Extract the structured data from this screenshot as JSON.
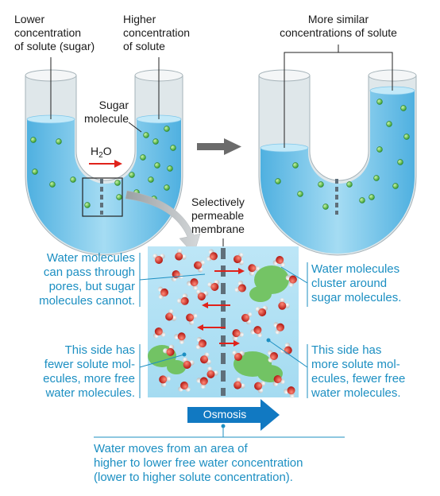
{
  "labels": {
    "lower_conc": "Lower\nconcentration\nof solute (sugar)",
    "higher_conc": "Higher\nconcentration\nof solute",
    "more_similar": "More similar\nconcentrations of solute",
    "sugar_molecule": "Sugar\nmolecule",
    "h2o_main": "H",
    "h2o_sub": "2",
    "h2o_end": "O",
    "selective": "Selectively\npermeable\nmembrane",
    "water_pores": "Water molecules\ncan pass through\npores, but sugar\nmolecules cannot.",
    "water_cluster": "Water molecules\ncluster around\nsugar molecules.",
    "fewer_solute": "This side has\nfewer solute mol-\necules, more free\nwater molecules.",
    "more_solute": "This side has\nmore solute mol-\necules, fewer free\nwater molecules.",
    "osmosis": "Osmosis",
    "conclusion": "Water moves from an area of\nhigher to lower free water concentration\n(lower to higher solute concentration)."
  },
  "colors": {
    "water": "#8fd0ee",
    "water_dark": "#5fb7e3",
    "tube_glass": "#e6ecef",
    "sugar": "#5fbf3f",
    "accent_blue": "#1c8fc2",
    "arrow_red": "#e0221b",
    "osmosis_arrow": "#1179c2",
    "big_arrow": "#666666",
    "membrane": "#5f6f7a"
  },
  "icons": {
    "water_molecule": "water-molecule-icon",
    "sugar_molecule": "sugar-molecule-icon"
  }
}
